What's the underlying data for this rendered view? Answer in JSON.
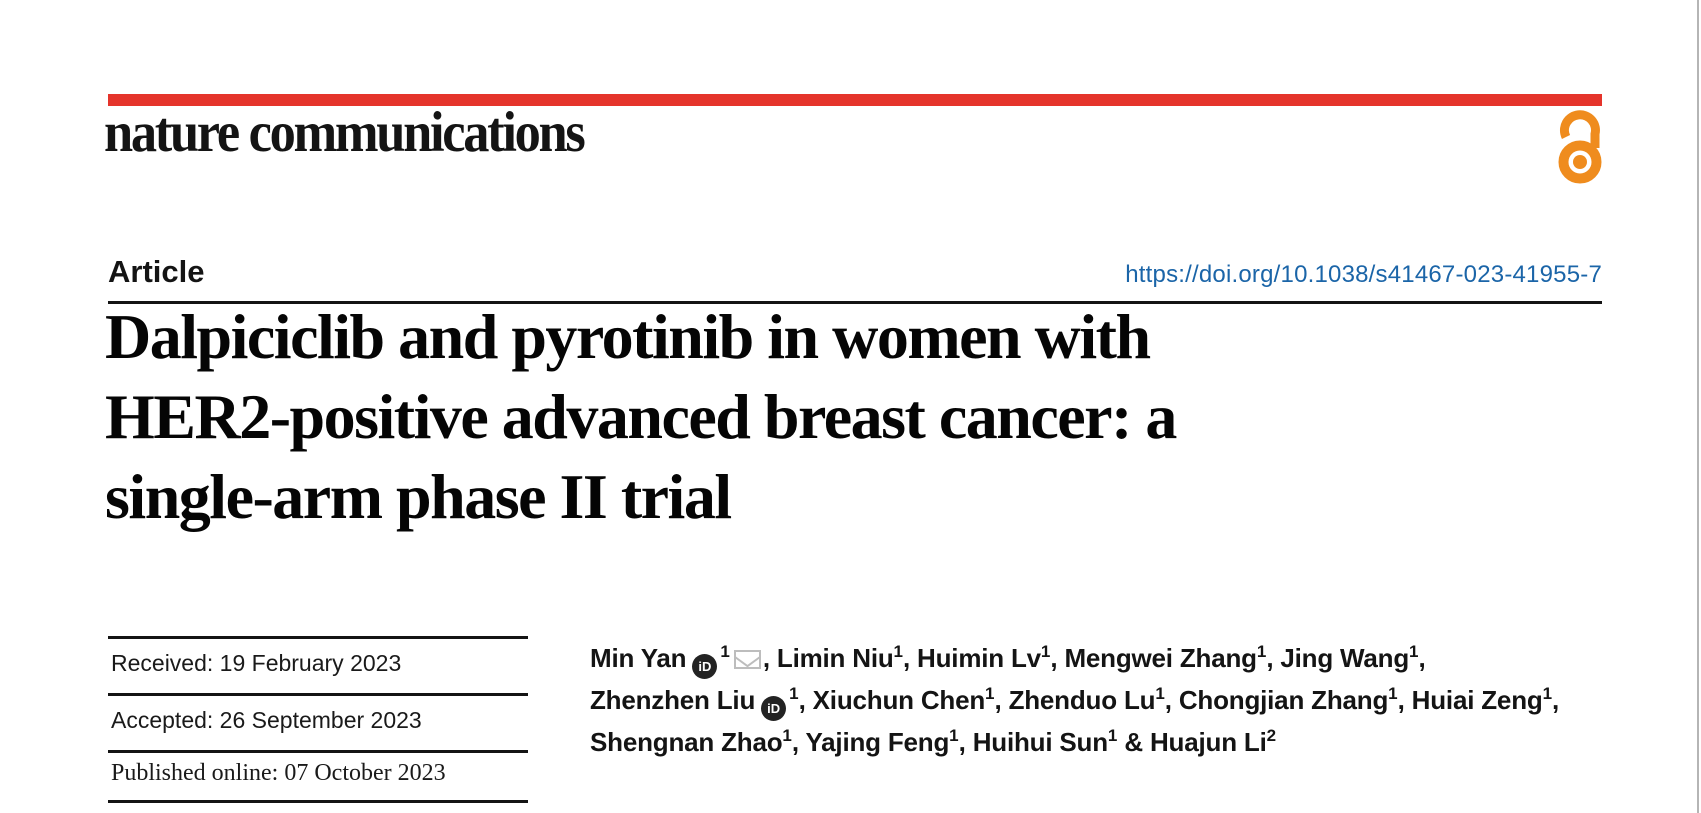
{
  "brand": {
    "journal_name": "nature communications",
    "accent_red": "#e5342b",
    "open_access_icon": "open-access-lock-icon",
    "open_access_color": "#ef8c1e"
  },
  "article_header": {
    "type_label": "Article",
    "doi": "https://doi.org/10.1038/s41467-023-41955-7",
    "doi_color": "#1b65a8"
  },
  "title": {
    "line1": "Dalpiciclib and pyrotinib in women with",
    "line2": "HER2-positive advanced breast cancer: a",
    "line3": "single-arm phase II trial"
  },
  "timeline": {
    "received": "Received: 19 February 2023",
    "accepted": "Accepted: 26 September 2023",
    "published_online": "Published online: 07 October 2023"
  },
  "authors": {
    "orcid_icon_label": "iD",
    "lines": [
      [
        {
          "text": "Min Yan"
        },
        {
          "icon": "orcid-icon"
        },
        {
          "sup": "1"
        },
        {
          "icon": "envelope-icon"
        },
        {
          "text": ", Limin Niu"
        },
        {
          "sup": "1"
        },
        {
          "text": ", Huimin Lv"
        },
        {
          "sup": "1"
        },
        {
          "text": ", Mengwei Zhang"
        },
        {
          "sup": "1"
        },
        {
          "text": ", Jing Wang"
        },
        {
          "sup": "1"
        },
        {
          "text": ","
        }
      ],
      [
        {
          "text": "Zhenzhen Liu"
        },
        {
          "icon": "orcid-icon"
        },
        {
          "sup": "1"
        },
        {
          "text": ", Xiuchun Chen"
        },
        {
          "sup": "1"
        },
        {
          "text": ", Zhenduo Lu"
        },
        {
          "sup": "1"
        },
        {
          "text": ", Chongjian Zhang"
        },
        {
          "sup": "1"
        },
        {
          "text": ", Huiai Zeng"
        },
        {
          "sup": "1"
        },
        {
          "text": ","
        }
      ],
      [
        {
          "text": "Shengnan Zhao"
        },
        {
          "sup": "1"
        },
        {
          "text": ", Yajing Feng"
        },
        {
          "sup": "1"
        },
        {
          "text": ", Huihui Sun"
        },
        {
          "sup": "1"
        },
        {
          "text": " & Huajun Li"
        },
        {
          "sup": "2"
        }
      ]
    ]
  }
}
